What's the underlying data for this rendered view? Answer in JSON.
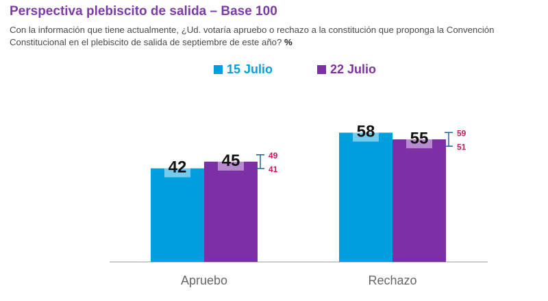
{
  "title": "Perspectiva plebiscito de salida – Base 100",
  "subtitle": "Con la información que tiene actualmente, ¿Ud. votaría apruebo o rechazo a la constitución que proponga la Convención Constitucional en el plebiscito de salida de septiembre de este año?",
  "subtitle_unit": "%",
  "colors": {
    "series1": "#00a0df",
    "series2": "#7d2fa6",
    "range": "#1a5fa0",
    "range_label": "#c2185b",
    "axis": "#999999",
    "category_label": "#666666"
  },
  "chart_data": {
    "type": "bar",
    "categories": [
      "Apruebo",
      "Rechazo"
    ],
    "series": [
      {
        "name": "15 Julio",
        "values": [
          42,
          58
        ]
      },
      {
        "name": "22 Julio",
        "values": [
          45,
          55
        ]
      }
    ],
    "error_ranges": [
      {
        "category": "Apruebo",
        "low": 41,
        "high": 49
      },
      {
        "category": "Rechazo",
        "low": 51,
        "high": 59
      }
    ],
    "ylim": [
      0,
      70
    ],
    "grid": false,
    "legend": "top-center"
  }
}
